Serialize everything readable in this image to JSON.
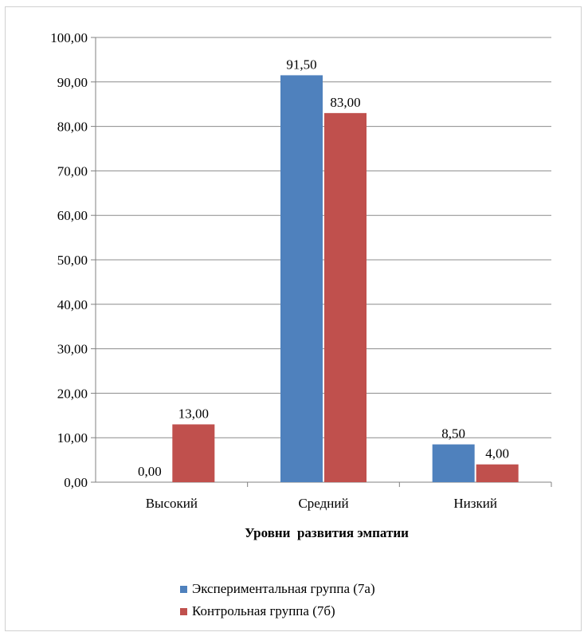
{
  "chart_data": {
    "type": "bar",
    "categories": [
      "Высокий",
      "Средний",
      "Низкий"
    ],
    "series": [
      {
        "name": "Экспериментальная группа (7а)",
        "values": [
          0.0,
          91.5,
          8.5
        ],
        "labels": [
          "0,00",
          "91,50",
          "8,50"
        ],
        "color": "#4f81bd"
      },
      {
        "name": "Контрольная группа (7б)",
        "values": [
          13.0,
          83.0,
          4.0
        ],
        "labels": [
          "13,00",
          "83,00",
          "4,00"
        ],
        "color": "#c0504d"
      }
    ],
    "xlabel": "Уровни  развития эмпатии",
    "ylabel": "",
    "ylim": [
      0,
      100
    ],
    "yticks": [
      0,
      10,
      20,
      30,
      40,
      50,
      60,
      70,
      80,
      90,
      100
    ],
    "ytick_labels": [
      "0,00",
      "10,00",
      "20,00",
      "30,00",
      "40,00",
      "50,00",
      "60,00",
      "70,00",
      "80,00",
      "90,00",
      "100,00"
    ],
    "grid": true,
    "legend_position": "bottom"
  }
}
